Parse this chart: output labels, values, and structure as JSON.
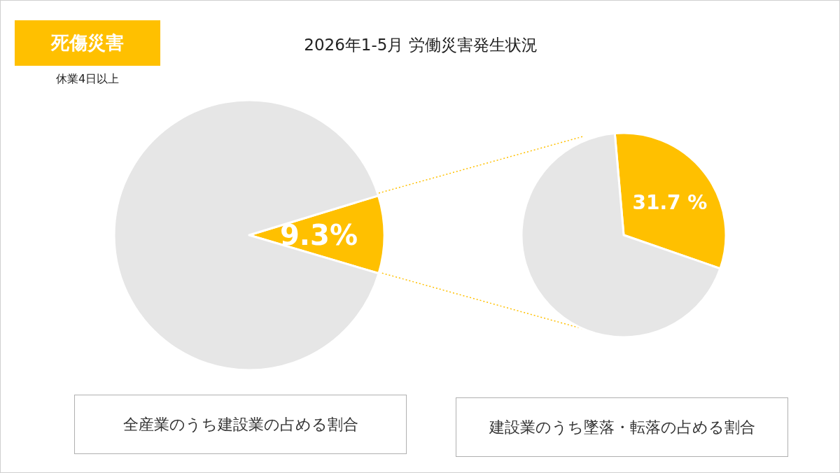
{
  "chart_data": [
    {
      "type": "pie",
      "title": "2026年1-5月 労働災害発生状況",
      "subtitle": "休業4日以上",
      "annotations": [
        "死傷災害",
        "全産業のうち建設業の占める割合"
      ],
      "categories": [
        null,
        null
      ],
      "values": [
        9.3,
        90.7
      ],
      "colors": [
        "#ffc000",
        "#e6e6e6"
      ],
      "value_labels": [
        "9.3%",
        null
      ]
    },
    {
      "type": "pie",
      "annotations": [
        "建設業のうち墜落・転落の占める割合"
      ],
      "categories": [
        null,
        null
      ],
      "values": [
        31.7,
        68.3
      ],
      "colors": [
        "#ffc000",
        "#e6e6e6"
      ],
      "value_labels": [
        "31.7 %",
        null
      ]
    }
  ]
}
